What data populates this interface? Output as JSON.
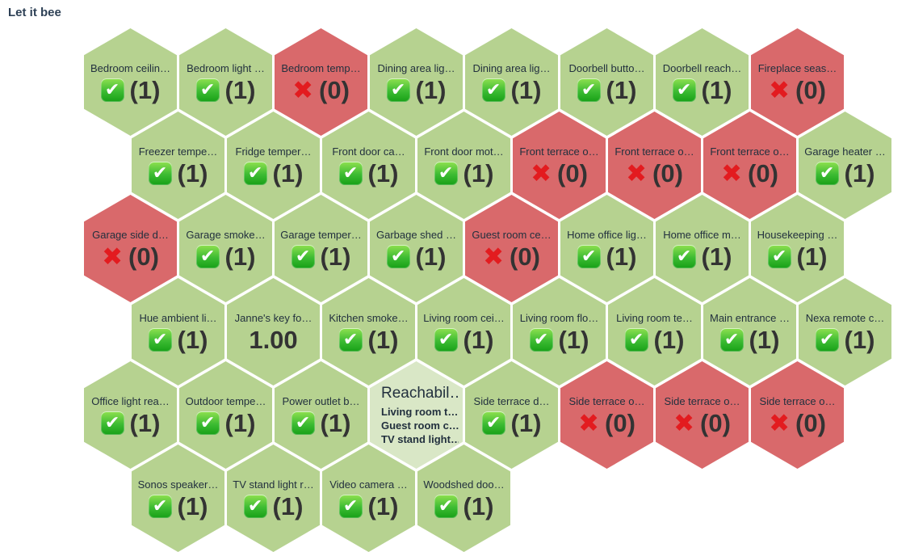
{
  "header": {
    "title": "Let it bee"
  },
  "icons": {
    "check_glyph": "✔",
    "cross_glyph": "✖"
  },
  "colors": {
    "ok_fill": "#b6d290",
    "fail_fill": "#d9696b",
    "composite_fill": "#d9e7c6",
    "label_text": "#22303e",
    "value_text": "#333333",
    "cross_red": "#e31b1f",
    "check_green_top": "#90e150",
    "check_green_bottom": "#17a017",
    "title_text": "#2e4156"
  },
  "hex_rows": [
    {
      "cells": [
        {
          "label": "Bedroom ceilin…",
          "status": "ok",
          "value": "(1)"
        },
        {
          "label": "Bedroom light …",
          "status": "ok",
          "value": "(1)"
        },
        {
          "label": "Bedroom temp…",
          "status": "fail",
          "value": "(0)"
        },
        {
          "label": "Dining area lig…",
          "status": "ok",
          "value": "(1)"
        },
        {
          "label": "Dining area lig…",
          "status": "ok",
          "value": "(1)"
        },
        {
          "label": "Doorbell butto…",
          "status": "ok",
          "value": "(1)"
        },
        {
          "label": "Doorbell reach…",
          "status": "ok",
          "value": "(1)"
        },
        {
          "label": "Fireplace seas…",
          "status": "fail",
          "value": "(0)"
        }
      ]
    },
    {
      "cells": [
        {
          "label": "Freezer tempe…",
          "status": "ok",
          "value": "(1)"
        },
        {
          "label": "Fridge temper…",
          "status": "ok",
          "value": "(1)"
        },
        {
          "label": "Front door ca…",
          "status": "ok",
          "value": "(1)"
        },
        {
          "label": "Front door mot…",
          "status": "ok",
          "value": "(1)"
        },
        {
          "label": "Front terrace o…",
          "status": "fail",
          "value": "(0)"
        },
        {
          "label": "Front terrace o…",
          "status": "fail",
          "value": "(0)"
        },
        {
          "label": "Front terrace o…",
          "status": "fail",
          "value": "(0)"
        },
        {
          "label": "Garage heater …",
          "status": "ok",
          "value": "(1)"
        }
      ]
    },
    {
      "cells": [
        {
          "label": "Garage side d…",
          "status": "fail",
          "value": "(0)"
        },
        {
          "label": "Garage smoke…",
          "status": "ok",
          "value": "(1)"
        },
        {
          "label": "Garage temper…",
          "status": "ok",
          "value": "(1)"
        },
        {
          "label": "Garbage shed …",
          "status": "ok",
          "value": "(1)"
        },
        {
          "label": "Guest room ce…",
          "status": "fail",
          "value": "(0)"
        },
        {
          "label": "Home office lig…",
          "status": "ok",
          "value": "(1)"
        },
        {
          "label": "Home office m…",
          "status": "ok",
          "value": "(1)"
        },
        {
          "label": "Housekeeping …",
          "status": "ok",
          "value": "(1)"
        }
      ]
    },
    {
      "cells": [
        {
          "label": "Hue ambient li…",
          "status": "ok",
          "value": "(1)"
        },
        {
          "label": "Janne's key fo…",
          "status": "plain",
          "value": "1.00"
        },
        {
          "label": "Kitchen smoke…",
          "status": "ok",
          "value": "(1)"
        },
        {
          "label": "Living room cei…",
          "status": "ok",
          "value": "(1)"
        },
        {
          "label": "Living room flo…",
          "status": "ok",
          "value": "(1)"
        },
        {
          "label": "Living room te…",
          "status": "ok",
          "value": "(1)"
        },
        {
          "label": "Main entrance …",
          "status": "ok",
          "value": "(1)"
        },
        {
          "label": "Nexa remote c…",
          "status": "ok",
          "value": "(1)"
        }
      ]
    },
    {
      "cells": [
        {
          "label": "Office light rea…",
          "status": "ok",
          "value": "(1)"
        },
        {
          "label": "Outdoor tempe…",
          "status": "ok",
          "value": "(1)"
        },
        {
          "label": "Power outlet b…",
          "status": "ok",
          "value": "(1)"
        },
        {
          "label": "Reachabil…",
          "status": "composite",
          "sublabels": [
            "Living room t…",
            "Guest room c…",
            "TV stand light…"
          ]
        },
        {
          "label": "Side terrace d…",
          "status": "ok",
          "value": "(1)"
        },
        {
          "label": "Side terrace o…",
          "status": "fail",
          "value": "(0)"
        },
        {
          "label": "Side terrace o…",
          "status": "fail",
          "value": "(0)"
        },
        {
          "label": "Side terrace o…",
          "status": "fail",
          "value": "(0)"
        }
      ]
    },
    {
      "cells": [
        {
          "label": "Sonos speaker…",
          "status": "ok",
          "value": "(1)"
        },
        {
          "label": "TV stand light r…",
          "status": "ok",
          "value": "(1)"
        },
        {
          "label": "Video camera …",
          "status": "ok",
          "value": "(1)"
        },
        {
          "label": "Woodshed doo…",
          "status": "ok",
          "value": "(1)"
        }
      ]
    }
  ]
}
